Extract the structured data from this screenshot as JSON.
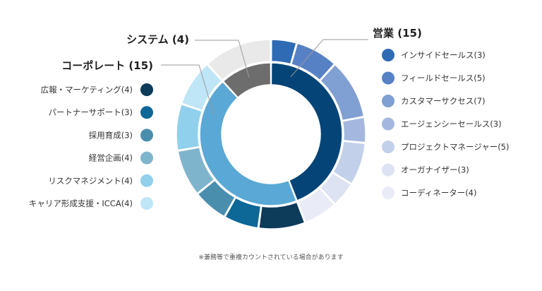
{
  "chart_data": {
    "type": "pie",
    "groups": [
      {
        "name": "営業",
        "count": 15,
        "label": "営業 (15)",
        "color": "#044477",
        "items": [
          {
            "name": "インサイドセールス",
            "value": 3,
            "label": "インサイドセールス(3)",
            "color": "#2e6bb4"
          },
          {
            "name": "フィールドセールス",
            "value": 5,
            "label": "フィールドセールス(5)",
            "color": "#5781c5"
          },
          {
            "name": "カスタマーサクセス",
            "value": 7,
            "label": "カスタマーサクセス(7)",
            "color": "#809fd2"
          },
          {
            "name": "エージェンシーセールス",
            "value": 3,
            "label": "エージェンシーセールス(3)",
            "color": "#a4b8df"
          },
          {
            "name": "プロジェクトマネージャー",
            "value": 5,
            "label": "プロジェクトマネージャー(5)",
            "color": "#c3d0ea"
          },
          {
            "name": "オーガナイザー",
            "value": 3,
            "label": "オーガナイザー(3)",
            "color": "#dde3f2"
          },
          {
            "name": "コーディネーター",
            "value": 4,
            "label": "コーディネーター(4)",
            "color": "#e9ecf6"
          }
        ]
      },
      {
        "name": "コーポレート",
        "count": 15,
        "label": "コーポレート (15)",
        "color": "#59a8d5",
        "items": [
          {
            "name": "広報・マーケティング",
            "value": 4,
            "label": "広報・マーケティング(4)",
            "color": "#0d3b5a"
          },
          {
            "name": "パートナーサポート",
            "value": 3,
            "label": "パートナーサポート(3)",
            "color": "#0d6797"
          },
          {
            "name": "採用育成",
            "value": 3,
            "label": "採用育成(3)",
            "color": "#4a8eae"
          },
          {
            "name": "経営企画",
            "value": 4,
            "label": "経営企画(4)",
            "color": "#7fb5cc"
          },
          {
            "name": "リスクマネジメント",
            "value": 4,
            "label": "リスクマネジメント(4)",
            "color": "#91d0ec"
          },
          {
            "name": "キャリア形成支援・ICCA",
            "value": 4,
            "label": "キャリア形成支援・ICCA(4)",
            "color": "#bfe6f7"
          }
        ]
      },
      {
        "name": "システム",
        "count": 4,
        "label": "システム (4)",
        "color": "#6d6d6d",
        "items": [
          {
            "name": "システム",
            "value": 4,
            "color": "#e9e9e9"
          }
        ]
      }
    ],
    "legend_placement": "left-and-right"
  },
  "note": "※兼務等で重複カウントされている場合があります"
}
